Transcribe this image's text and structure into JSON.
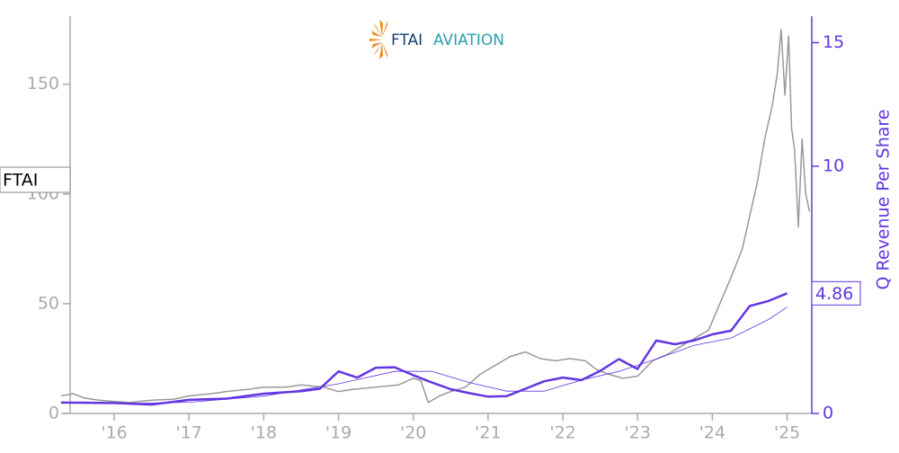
{
  "chart_data": {
    "type": "line",
    "logo": {
      "primary": "FTAI",
      "secondary": "AVIATION"
    },
    "ticker_label": "FTAI",
    "y2label": "Q Revenue Per Share",
    "xlim": [
      2015.29,
      2025.33
    ],
    "xticks": [
      {
        "value": 2016,
        "label": "'16"
      },
      {
        "value": 2017,
        "label": "'17"
      },
      {
        "value": 2018,
        "label": "'18"
      },
      {
        "value": 2019,
        "label": "'19"
      },
      {
        "value": 2020,
        "label": "'20"
      },
      {
        "value": 2021,
        "label": "'21"
      },
      {
        "value": 2022,
        "label": "'22"
      },
      {
        "value": 2023,
        "label": "'23"
      },
      {
        "value": 2024,
        "label": "'24"
      },
      {
        "value": 2025,
        "label": "'25"
      }
    ],
    "ylim": [
      0,
      181
    ],
    "yticks": [
      0,
      50,
      100,
      150
    ],
    "y2lim": [
      0,
      16.07
    ],
    "y2ticks": [
      0,
      5,
      10,
      15
    ],
    "axis_color": "#aaaaaa",
    "y2_color": "#6236e0",
    "series": [
      {
        "axis": "y",
        "color": "#999999",
        "width": 1.5,
        "x": [
          2015.29,
          2015.45,
          2015.6,
          2015.8,
          2016.0,
          2016.2,
          2016.5,
          2016.8,
          2017.0,
          2017.3,
          2017.5,
          2017.8,
          2018.0,
          2018.3,
          2018.5,
          2018.8,
          2019.0,
          2019.2,
          2019.5,
          2019.8,
          2020.0,
          2020.1,
          2020.2,
          2020.35,
          2020.5,
          2020.7,
          2020.9,
          2021.1,
          2021.3,
          2021.5,
          2021.7,
          2021.9,
          2022.1,
          2022.3,
          2022.45,
          2022.6,
          2022.8,
          2023.0,
          2023.2,
          2023.4,
          2023.6,
          2023.8,
          2023.95,
          2024.1,
          2024.25,
          2024.4,
          2024.5,
          2024.6,
          2024.7,
          2024.8,
          2024.87,
          2024.92,
          2024.97,
          2025.02,
          2025.06,
          2025.1,
          2025.15,
          2025.2,
          2025.25,
          2025.3
        ],
        "values": [
          8,
          9,
          7,
          6,
          5.5,
          5,
          6,
          6.5,
          8,
          9,
          10,
          11,
          12,
          12,
          13,
          12,
          10,
          11,
          12,
          13,
          16,
          15,
          5,
          8,
          10,
          12,
          18,
          22,
          26,
          28,
          25,
          24,
          25,
          24,
          20,
          18,
          16,
          17,
          24,
          27,
          31,
          35,
          38,
          50,
          62,
          75,
          90,
          105,
          125,
          140,
          155,
          175,
          145,
          172,
          130,
          120,
          85,
          125,
          100,
          92
        ]
      },
      {
        "axis": "y2",
        "color": "#6236e0",
        "width": 2.5,
        "x": [
          2015.29,
          2016.0,
          2016.5,
          2017.0,
          2017.5,
          2018.0,
          2018.5,
          2018.75,
          2019.0,
          2019.25,
          2019.5,
          2019.75,
          2020.0,
          2020.25,
          2020.5,
          2020.75,
          2021.0,
          2021.25,
          2021.5,
          2021.75,
          2022.0,
          2022.25,
          2022.5,
          2022.75,
          2023.0,
          2023.25,
          2023.5,
          2023.75,
          2024.0,
          2024.25,
          2024.5,
          2024.75,
          2025.0
        ],
        "values": [
          0.44,
          0.42,
          0.36,
          0.55,
          0.6,
          0.8,
          0.9,
          1.0,
          1.7,
          1.45,
          1.85,
          1.87,
          1.55,
          1.25,
          0.98,
          0.82,
          0.68,
          0.7,
          1.0,
          1.3,
          1.45,
          1.35,
          1.72,
          2.2,
          1.8,
          2.95,
          2.8,
          2.95,
          3.2,
          3.35,
          4.35,
          4.55,
          4.86
        ]
      },
      {
        "axis": "y2",
        "color": "#6236e0",
        "width": 0.8,
        "x": [
          2015.29,
          2016.0,
          2017.0,
          2018.0,
          2019.0,
          2019.75,
          2020.25,
          2020.75,
          2021.25,
          2021.75,
          2022.25,
          2022.75,
          2023.25,
          2023.75,
          2024.25,
          2024.75,
          2025.0
        ],
        "values": [
          0.42,
          0.4,
          0.45,
          0.7,
          1.2,
          1.7,
          1.7,
          1.25,
          0.9,
          0.9,
          1.35,
          1.7,
          2.2,
          2.75,
          3.05,
          3.8,
          4.3
        ]
      }
    ]
  }
}
